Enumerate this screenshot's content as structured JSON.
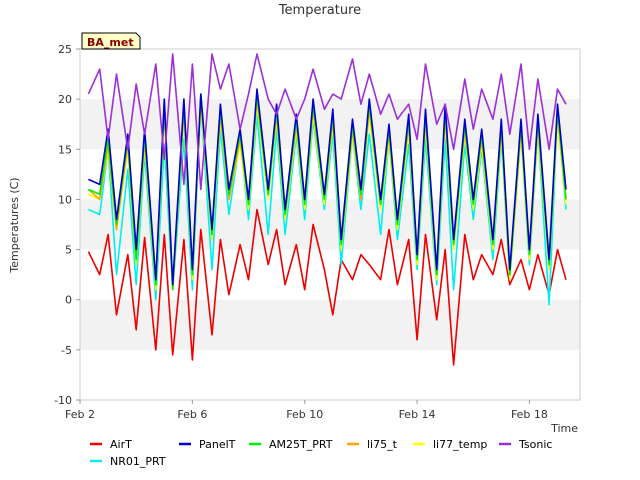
{
  "chart_data": {
    "type": "line",
    "title": "Temperature",
    "xlabel": "Time",
    "ylabel": "Temperatures (C)",
    "site_label": "BA_met",
    "x_range_days": [
      2,
      19.8
    ],
    "xticks": [
      {
        "day": 2,
        "label": "Feb 2"
      },
      {
        "day": 6,
        "label": "Feb 6"
      },
      {
        "day": 10,
        "label": "Feb 10"
      },
      {
        "day": 14,
        "label": "Feb 14"
      },
      {
        "day": 18,
        "label": "Feb 18"
      }
    ],
    "ylim": [
      -10,
      25
    ],
    "yticks": [
      -10,
      -5,
      0,
      5,
      10,
      15,
      20,
      25
    ],
    "grid": "alternating horizontal bands",
    "legend_position": "bottom",
    "x_days": [
      2.3,
      2.7,
      3.0,
      3.3,
      3.7,
      4.0,
      4.3,
      4.7,
      5.0,
      5.3,
      5.7,
      6.0,
      6.3,
      6.7,
      7.0,
      7.3,
      7.7,
      8.0,
      8.3,
      8.7,
      9.0,
      9.3,
      9.7,
      10.0,
      10.3,
      10.7,
      11.0,
      11.3,
      11.7,
      12.0,
      12.3,
      12.7,
      13.0,
      13.3,
      13.7,
      14.0,
      14.3,
      14.7,
      15.0,
      15.3,
      15.7,
      16.0,
      16.3,
      16.7,
      17.0,
      17.3,
      17.7,
      18.0,
      18.3,
      18.7,
      19.0,
      19.3
    ],
    "series": [
      {
        "name": "AirT",
        "color": "#ee0000",
        "values": [
          4.8,
          2.5,
          6.5,
          -1.5,
          4.5,
          -3.0,
          6.2,
          -5.0,
          6.5,
          -5.5,
          6.0,
          -6.0,
          7.0,
          -3.5,
          6.0,
          0.5,
          5.5,
          2.0,
          9.0,
          3.5,
          7.0,
          1.5,
          5.5,
          1.0,
          7.5,
          3.0,
          -1.5,
          4.0,
          2.0,
          4.5,
          3.5,
          2.0,
          7.0,
          1.5,
          6.0,
          -4.0,
          6.5,
          -2.0,
          5.0,
          -6.5,
          6.5,
          2.0,
          4.5,
          2.5,
          6.0,
          1.5,
          4.0,
          1.0,
          4.5,
          0.5,
          5.0,
          2.0
        ]
      },
      {
        "name": "PanelT",
        "color": "#0000cc",
        "values": [
          12.0,
          11.5,
          17.0,
          8.0,
          16.5,
          5.0,
          17.0,
          2.0,
          20.0,
          1.5,
          20.0,
          3.0,
          20.5,
          7.0,
          19.5,
          11.0,
          17.0,
          10.0,
          21.0,
          11.0,
          19.5,
          9.0,
          18.5,
          10.0,
          20.0,
          10.5,
          19.0,
          6.0,
          18.0,
          11.0,
          20.0,
          10.0,
          17.5,
          8.0,
          18.5,
          4.5,
          19.0,
          3.0,
          19.5,
          6.0,
          18.0,
          10.0,
          17.0,
          6.0,
          18.0,
          3.0,
          18.0,
          5.0,
          18.5,
          4.0,
          19.5,
          11.0
        ]
      },
      {
        "name": "AM25T_PRT",
        "color": "#00ee00",
        "values": [
          11.0,
          10.5,
          16.0,
          7.5,
          16.0,
          4.0,
          16.5,
          1.5,
          19.5,
          1.0,
          19.5,
          2.5,
          20.5,
          6.5,
          19.0,
          10.5,
          16.5,
          9.5,
          20.5,
          10.5,
          19.0,
          8.5,
          18.0,
          9.5,
          19.5,
          10.0,
          18.5,
          5.5,
          17.5,
          10.5,
          19.5,
          9.5,
          17.0,
          7.5,
          18.0,
          4.0,
          18.5,
          2.5,
          19.0,
          5.5,
          17.5,
          9.5,
          16.5,
          5.5,
          17.5,
          2.5,
          17.5,
          4.5,
          18.0,
          3.5,
          19.0,
          10.0
        ]
      },
      {
        "name": "li75_t",
        "color": "#ffa500",
        "values": [
          11.0,
          10.0,
          15.5,
          7.0,
          15.5,
          4.0,
          16.0,
          1.5,
          19.0,
          1.0,
          19.0,
          2.5,
          20.0,
          6.5,
          18.5,
          10.0,
          16.0,
          9.5,
          20.0,
          10.5,
          18.5,
          8.5,
          17.5,
          9.5,
          19.0,
          10.0,
          18.0,
          5.5,
          17.0,
          10.0,
          19.0,
          9.5,
          16.5,
          7.5,
          17.5,
          4.0,
          18.0,
          2.5,
          18.5,
          5.5,
          17.0,
          9.5,
          16.0,
          5.5,
          17.0,
          2.5,
          17.0,
          4.5,
          17.5,
          3.5,
          18.5,
          10.0
        ]
      },
      {
        "name": "li77_temp",
        "color": "#ffff00",
        "values": [
          10.5,
          10.0,
          15.0,
          7.0,
          15.0,
          3.5,
          15.5,
          1.0,
          18.5,
          1.0,
          18.5,
          2.0,
          19.5,
          6.0,
          18.0,
          10.0,
          15.5,
          9.0,
          19.5,
          10.0,
          18.0,
          8.0,
          17.0,
          9.0,
          18.5,
          9.5,
          17.5,
          5.0,
          16.5,
          10.0,
          18.5,
          9.0,
          16.0,
          7.0,
          17.0,
          3.5,
          17.5,
          2.0,
          18.0,
          5.0,
          16.5,
          9.0,
          15.5,
          5.0,
          16.5,
          2.0,
          16.5,
          4.0,
          17.0,
          3.0,
          18.0,
          9.5
        ]
      },
      {
        "name": "NR01_PRT",
        "color": "#00eeee",
        "values": [
          9.0,
          8.5,
          15.0,
          2.5,
          13.0,
          1.5,
          14.5,
          0.0,
          15.5,
          1.0,
          16.0,
          1.0,
          19.5,
          3.0,
          17.0,
          8.5,
          16.0,
          8.0,
          18.5,
          6.5,
          17.0,
          6.5,
          16.5,
          8.0,
          18.0,
          9.0,
          16.5,
          3.5,
          16.5,
          9.0,
          16.5,
          6.5,
          16.0,
          6.0,
          15.5,
          3.0,
          16.0,
          1.5,
          16.0,
          1.0,
          15.5,
          8.0,
          15.0,
          4.0,
          16.0,
          2.0,
          16.5,
          3.5,
          17.0,
          -0.5,
          18.5,
          9.0
        ]
      },
      {
        "name": "Tsonic",
        "color": "#9b30d9",
        "values": [
          20.5,
          23.0,
          16.0,
          22.5,
          15.0,
          21.5,
          16.5,
          23.5,
          14.0,
          24.5,
          11.5,
          23.5,
          11.0,
          24.5,
          21.0,
          23.5,
          17.0,
          20.5,
          24.5,
          20.0,
          18.5,
          21.0,
          18.0,
          20.0,
          23.0,
          19.0,
          20.5,
          20.0,
          24.0,
          19.5,
          22.5,
          18.5,
          20.5,
          18.0,
          19.5,
          16.0,
          23.5,
          17.5,
          19.5,
          15.0,
          22.0,
          17.0,
          21.0,
          18.0,
          22.5,
          16.5,
          23.5,
          15.0,
          22.0,
          15.0,
          21.0,
          19.5
        ]
      }
    ]
  }
}
